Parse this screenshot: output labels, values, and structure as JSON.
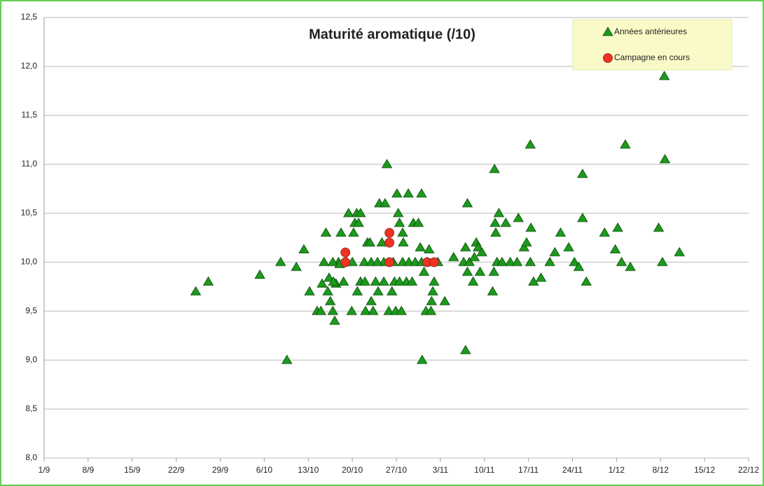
{
  "chart_data": {
    "type": "scatter",
    "title": "Maturité aromatique (/10)",
    "xlim": [
      0,
      112
    ],
    "xticks": [
      {
        "value": 0,
        "label": "1/9"
      },
      {
        "value": 7,
        "label": "8/9"
      },
      {
        "value": 14,
        "label": "15/9"
      },
      {
        "value": 21,
        "label": "22/9"
      },
      {
        "value": 28,
        "label": "29/9"
      },
      {
        "value": 35,
        "label": "6/10"
      },
      {
        "value": 42,
        "label": "13/10"
      },
      {
        "value": 49,
        "label": "20/10"
      },
      {
        "value": 56,
        "label": "27/10"
      },
      {
        "value": 63,
        "label": "3/11"
      },
      {
        "value": 70,
        "label": "10/11"
      },
      {
        "value": 77,
        "label": "17/11"
      },
      {
        "value": 84,
        "label": "24/11"
      },
      {
        "value": 91,
        "label": "1/12"
      },
      {
        "value": 98,
        "label": "8/12"
      },
      {
        "value": 105,
        "label": "15/12"
      },
      {
        "value": 112,
        "label": "22/12"
      }
    ],
    "ylim": [
      8,
      12.5
    ],
    "yticks": [
      {
        "value": 8,
        "label": "8,0"
      },
      {
        "value": 8.5,
        "label": "8,5"
      },
      {
        "value": 9,
        "label": "9,0"
      },
      {
        "value": 9.5,
        "label": "9,5"
      },
      {
        "value": 10,
        "label": "10,0"
      },
      {
        "value": 10.5,
        "label": "10,5"
      },
      {
        "value": 11,
        "label": "11,0"
      },
      {
        "value": 11.5,
        "label": "11,5"
      },
      {
        "value": 12,
        "label": "12,0"
      },
      {
        "value": 12.5,
        "label": "12,5"
      }
    ],
    "grid": true,
    "legend": "top-right",
    "series": [
      {
        "name": "Années antérieures",
        "color": "#1c9a1c",
        "marker": "triangle",
        "x": [
          24.1,
          26.1,
          34.3,
          37.6,
          38.6,
          40.1,
          41.3,
          42.2,
          43.4,
          44.0,
          44.2,
          44.5,
          44.8,
          45.1,
          45.3,
          45.5,
          45.9,
          46.2,
          46.4,
          46.8,
          47.2,
          47.6,
          48.1,
          48.4,
          48.9,
          49.2,
          49.4,
          49.7,
          50.0,
          50.3,
          49.8,
          50.3,
          50.9,
          51.1,
          51.4,
          51.8,
          52.0,
          52.3,
          52.7,
          53.1,
          53.3,
          53.7,
          54.0,
          54.2,
          54.5,
          54.8,
          55.3,
          55.7,
          55.9,
          56.1,
          56.3,
          56.5,
          56.8,
          57.0,
          57.1,
          57.6,
          57.9,
          58.7,
          59.5,
          60.0,
          59.8,
          60.1,
          60.4,
          60.7,
          60.9,
          61.2,
          61.5,
          61.6,
          61.8,
          62.0,
          62.6,
          63.7,
          65.1,
          66.7,
          67.0,
          67.3,
          67.0,
          67.3,
          67.6,
          68.2,
          68.4,
          68.7,
          69.0,
          69.3,
          69.6,
          71.3,
          71.5,
          71.6,
          71.7,
          71.8,
          72.0,
          72.3,
          72.8,
          73.4,
          74.1,
          75.4,
          75.2,
          76.3,
          76.7,
          77.3,
          77.3,
          77.4,
          77.8,
          79.0,
          80.4,
          81.2,
          82.1,
          83.4,
          84.3,
          85.0,
          85.6,
          85.6,
          86.2,
          89.1,
          90.8,
          91.2,
          91.8,
          92.4,
          93.2,
          97.7,
          98.3,
          98.6,
          98.7,
          101.0,
          45.9,
          47.0,
          49.0,
          52.0,
          53.0,
          55.5,
          57.0,
          58.0,
          59.0,
          60.0,
          46.0,
          51.0,
          54.0,
          56.5,
          58.5
        ],
        "values": [
          9.7,
          9.8,
          9.87,
          10.0,
          9.0,
          9.95,
          10.13,
          9.7,
          9.5,
          9.5,
          9.78,
          10.0,
          10.3,
          9.7,
          9.84,
          9.6,
          9.5,
          9.4,
          9.78,
          10.0,
          10.3,
          9.8,
          10.0,
          10.5,
          9.5,
          10.3,
          10.4,
          10.5,
          10.4,
          10.5,
          9.7,
          9.8,
          10.0,
          9.5,
          10.2,
          10.2,
          9.6,
          9.5,
          9.8,
          9.7,
          10.6,
          10.2,
          10.0,
          10.6,
          11.0,
          9.5,
          9.7,
          9.8,
          9.5,
          10.7,
          10.5,
          10.4,
          9.5,
          10.3,
          10.2,
          9.8,
          10.7,
          10.4,
          10.4,
          10.7,
          10.15,
          9.0,
          9.9,
          9.5,
          10.0,
          10.13,
          9.5,
          9.6,
          9.7,
          9.8,
          10.0,
          9.6,
          10.05,
          10.0,
          9.1,
          10.6,
          10.15,
          9.9,
          10.0,
          9.8,
          10.05,
          10.2,
          10.15,
          9.9,
          10.1,
          9.7,
          9.9,
          10.95,
          10.4,
          10.3,
          10.0,
          10.5,
          10.0,
          10.4,
          10.0,
          10.45,
          10.0,
          10.15,
          10.2,
          11.2,
          10.0,
          10.35,
          9.8,
          9.84,
          10.0,
          10.1,
          10.3,
          10.15,
          10.0,
          9.95,
          10.9,
          10.45,
          9.8,
          10.3,
          10.13,
          10.35,
          10.0,
          11.2,
          9.95,
          10.35,
          10.0,
          11.9,
          11.05,
          10.1,
          10.0,
          9.98,
          10.0,
          10.0,
          10.0,
          10.0,
          10.0,
          10.0,
          10.0,
          10.0,
          9.8,
          9.8,
          9.8,
          9.8,
          9.8
        ]
      },
      {
        "name": "Campagne en cours",
        "color": "#ee3322",
        "marker": "circle",
        "x": [
          47.9,
          47.9,
          54.9,
          54.9,
          54.9,
          60.9,
          62.0
        ],
        "values": [
          10.1,
          10.0,
          10.3,
          10.2,
          10.0,
          10.0,
          10.0
        ]
      }
    ]
  }
}
